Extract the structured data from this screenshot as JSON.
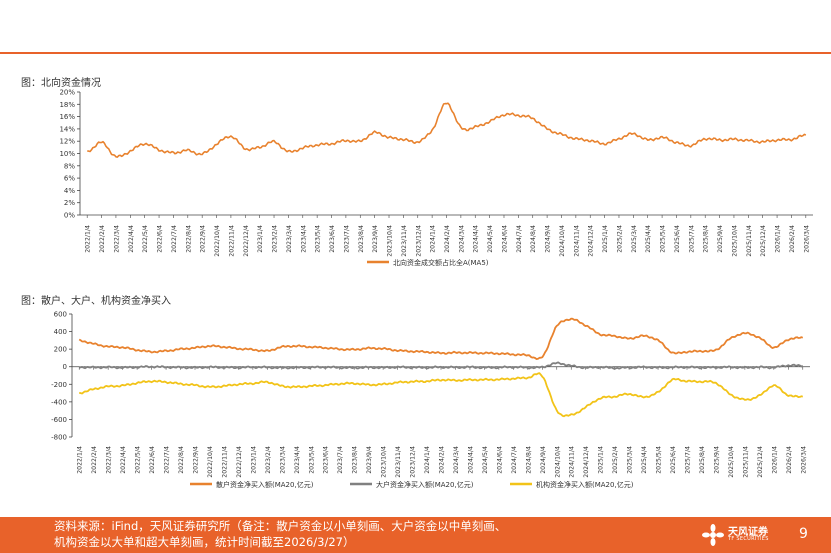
{
  "chart_data": [
    {
      "type": "line",
      "title": "图：北向资金情况",
      "ylim": [
        0,
        20
      ],
      "yticks": [
        "0%",
        "2%",
        "4%",
        "6%",
        "8%",
        "10%",
        "12%",
        "14%",
        "16%",
        "18%",
        "20%"
      ],
      "categories": [
        "2022/1/4",
        "2022/2/4",
        "2022/3/4",
        "2022/4/4",
        "2022/5/4",
        "2022/6/4",
        "2022/7/4",
        "2022/8/4",
        "2022/9/4",
        "2022/10/4",
        "2022/11/4",
        "2022/12/4",
        "2023/1/4",
        "2023/2/4",
        "2023/3/4",
        "2023/4/4",
        "2023/5/4",
        "2023/6/4",
        "2023/7/4",
        "2023/8/4",
        "2023/9/4",
        "2023/10/4",
        "2023/11/4",
        "2023/12/4",
        "2024/1/4",
        "2024/2/4",
        "2024/3/4",
        "2024/4/4",
        "2024/5/4",
        "2024/6/4",
        "2024/7/4",
        "2024/8/4",
        "2024/9/4",
        "2024/10/4",
        "2024/11/4",
        "2024/12/4",
        "2025/1/4",
        "2025/2/4",
        "2025/3/4",
        "2025/4/4",
        "2025/5/4",
        "2025/6/4",
        "2025/7/4",
        "2025/8/4",
        "2025/9/4",
        "2025/10/4",
        "2025/11/4",
        "2025/12/4",
        "2026/1/4",
        "2026/2/4",
        "2026/3/4"
      ],
      "series": [
        {
          "name": "北向资金成交额占比全A(MA5)",
          "color": "#e8822e",
          "values": [
            10.2,
            11.8,
            9.5,
            10.4,
            11.6,
            10.6,
            10.1,
            10.5,
            9.9,
            11.5,
            12.8,
            10.8,
            11.0,
            11.9,
            10.3,
            10.9,
            11.4,
            11.6,
            12.1,
            12.0,
            13.4,
            12.6,
            12.3,
            11.9,
            13.8,
            18.2,
            14.2,
            14.3,
            15.2,
            16.3,
            16.2,
            15.7,
            14.0,
            13.1,
            12.4,
            12.1,
            11.6,
            12.4,
            13.2,
            12.2,
            12.6,
            11.8,
            11.3,
            12.4,
            12.2,
            12.3,
            12.1,
            11.9,
            12.2,
            12.3,
            13.0
          ]
        }
      ]
    },
    {
      "type": "line",
      "title": "图：散户、大户、机构资金净买入",
      "ylim": [
        -800,
        600
      ],
      "yticks": [
        "-800",
        "-600",
        "-400",
        "-200",
        "0",
        "200",
        "400",
        "600"
      ],
      "categories": [
        "2022/1/4",
        "2022/2/4",
        "2022/3/4",
        "2022/4/4",
        "2022/5/4",
        "2022/6/4",
        "2022/7/4",
        "2022/8/4",
        "2022/9/4",
        "2022/10/4",
        "2022/11/4",
        "2022/12/4",
        "2023/1/4",
        "2023/2/4",
        "2023/3/4",
        "2023/4/4",
        "2023/5/4",
        "2023/6/4",
        "2023/7/4",
        "2023/8/4",
        "2023/9/4",
        "2023/10/4",
        "2023/11/4",
        "2023/12/4",
        "2024/1/4",
        "2024/2/4",
        "2024/3/4",
        "2024/4/4",
        "2024/5/4",
        "2024/6/4",
        "2024/7/4",
        "2024/8/4",
        "2024/9/4",
        "2024/10/4",
        "2024/11/4",
        "2024/12/4",
        "2025/1/4",
        "2025/2/4",
        "2025/3/4",
        "2025/4/4",
        "2025/5/4",
        "2025/6/4",
        "2025/7/4",
        "2025/8/4",
        "2025/9/4",
        "2025/10/4",
        "2025/11/4",
        "2025/12/4",
        "2026/1/4",
        "2026/2/4",
        "2026/3/4"
      ],
      "series": [
        {
          "name": "散户资金净买入额(MA20,亿元)",
          "color": "#e8822e",
          "values": [
            300,
            260,
            230,
            220,
            190,
            170,
            180,
            200,
            215,
            235,
            225,
            205,
            195,
            180,
            225,
            235,
            225,
            215,
            200,
            195,
            210,
            205,
            185,
            175,
            168,
            155,
            160,
            158,
            155,
            150,
            140,
            130,
            110,
            460,
            540,
            470,
            370,
            350,
            320,
            350,
            300,
            160,
            170,
            178,
            190,
            320,
            380,
            330,
            220,
            310,
            330
          ]
        },
        {
          "name": "大户资金净买入额(MA20,亿元)",
          "color": "#808080",
          "values": [
            -5,
            -8,
            -6,
            -10,
            -5,
            0,
            -5,
            -8,
            -10,
            -5,
            -8,
            -10,
            -5,
            -8,
            -12,
            -10,
            -8,
            -5,
            -10,
            -12,
            -8,
            -10,
            -5,
            -8,
            -10,
            -5,
            -8,
            -5,
            -10,
            -8,
            -5,
            -10,
            -5,
            40,
            10,
            -10,
            -5,
            -15,
            -10,
            -5,
            -10,
            -8,
            -5,
            -10,
            -8,
            -5,
            -10,
            -5,
            -8,
            15,
            10
          ]
        },
        {
          "name": "机构资金净买入额(MA20,亿元)",
          "color": "#f2c318",
          "values": [
            -300,
            -255,
            -225,
            -215,
            -185,
            -165,
            -175,
            -195,
            -210,
            -230,
            -220,
            -200,
            -190,
            -175,
            -220,
            -230,
            -220,
            -210,
            -195,
            -190,
            -205,
            -200,
            -180,
            -170,
            -165,
            -150,
            -155,
            -150,
            -148,
            -145,
            -135,
            -125,
            -105,
            -500,
            -550,
            -460,
            -360,
            -340,
            -310,
            -345,
            -290,
            -150,
            -165,
            -170,
            -185,
            -315,
            -375,
            -330,
            -215,
            -325,
            -340
          ]
        }
      ]
    }
  ],
  "footer": {
    "line1": "资料来源：iFind，天风证券研究所（备注：散户资金以小单刻画、大户资金以中单刻画、",
    "line2": "机构资金以大单和超大单刻画，统计时间截至2026/3/27）",
    "logo_name": "天风证券",
    "logo_sub": "TF SECURITIES",
    "page_number": "9"
  }
}
